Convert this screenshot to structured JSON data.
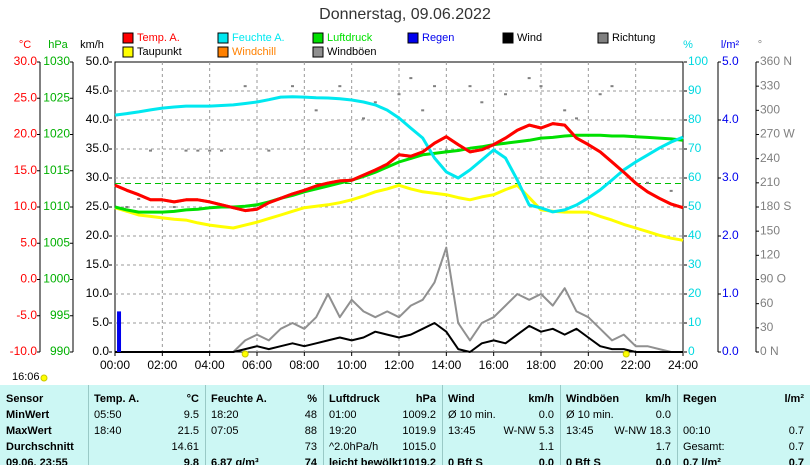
{
  "chart_data": {
    "type": "line",
    "title": "Donnerstag, 09.06.2022",
    "time_label": "16:06",
    "x": [
      0,
      0.5,
      1,
      1.5,
      2,
      2.5,
      3,
      3.5,
      4,
      4.5,
      5,
      5.5,
      6,
      6.5,
      7,
      7.5,
      8,
      8.5,
      9,
      9.5,
      10,
      10.5,
      11,
      11.5,
      12,
      12.5,
      13,
      13.5,
      14,
      14.5,
      15,
      15.5,
      16,
      16.5,
      17,
      17.5,
      18,
      18.5,
      19,
      19.5,
      20,
      20.5,
      21,
      21.5,
      22,
      22.5,
      23,
      23.5,
      24
    ],
    "xlim": [
      0,
      24
    ],
    "xticks": [
      {
        "value": 0,
        "label": "00:00"
      },
      {
        "value": 2,
        "label": "02:00"
      },
      {
        "value": 4,
        "label": "04:00"
      },
      {
        "value": 6,
        "label": "06:00"
      },
      {
        "value": 8,
        "label": "08:00"
      },
      {
        "value": 10,
        "label": "10:00"
      },
      {
        "value": 12,
        "label": "12:00"
      },
      {
        "value": 14,
        "label": "14:00"
      },
      {
        "value": 16,
        "label": "16:00"
      },
      {
        "value": 18,
        "label": "18:00"
      },
      {
        "value": 20,
        "label": "20:00"
      },
      {
        "value": 22,
        "label": "22:00"
      },
      {
        "value": 24,
        "label": "24:00"
      }
    ],
    "grid": true,
    "sun_markers": [
      5.5,
      21.6
    ],
    "pressure_reference": 1013.25,
    "axes": {
      "temp": {
        "unit": "°C",
        "color": "#ff0000",
        "side": "left",
        "ylim": [
          -10,
          30
        ],
        "yticks": [
          {
            "value": 30,
            "label": "30.0"
          },
          {
            "value": 25,
            "label": "25.0"
          },
          {
            "value": 20,
            "label": "20.0"
          },
          {
            "value": 15,
            "label": "15.0"
          },
          {
            "value": 10,
            "label": "10.0"
          },
          {
            "value": 5,
            "label": "5.0"
          },
          {
            "value": 0,
            "label": "0.0"
          },
          {
            "value": -5,
            "label": "-5.0"
          },
          {
            "value": -10,
            "label": "-10.0"
          }
        ]
      },
      "pressure": {
        "unit": "hPa",
        "color": "#00b000",
        "side": "left",
        "ylim": [
          990,
          1030
        ],
        "yticks": [
          1030,
          1025,
          1020,
          1015,
          1010,
          1005,
          1000,
          995,
          990
        ]
      },
      "wind": {
        "unit": "km/h",
        "color": "#000000",
        "side": "left",
        "ylim": [
          0,
          50
        ],
        "yticks": [
          {
            "value": 50,
            "label": "50.0"
          },
          {
            "value": 45,
            "label": "45.0"
          },
          {
            "value": 40,
            "label": "40.0"
          },
          {
            "value": 35,
            "label": "35.0"
          },
          {
            "value": 30,
            "label": "30.0"
          },
          {
            "value": 25,
            "label": "25.0"
          },
          {
            "value": 20,
            "label": "20.0"
          },
          {
            "value": 15,
            "label": "15.0"
          },
          {
            "value": 10,
            "label": "10.0"
          },
          {
            "value": 5,
            "label": "5.0"
          },
          {
            "value": 0,
            "label": "0.0"
          }
        ]
      },
      "humidity": {
        "unit": "%",
        "color": "#00d8e0",
        "side": "right",
        "ylim": [
          0,
          100
        ],
        "yticks": [
          100,
          90,
          80,
          70,
          60,
          50,
          40,
          30,
          20,
          10,
          0
        ]
      },
      "rain": {
        "unit": "l/m²",
        "color": "#0000ee",
        "side": "right",
        "ylim": [
          0,
          5
        ],
        "yticks": [
          {
            "value": 5,
            "label": "5.0"
          },
          {
            "value": 4,
            "label": "4.0"
          },
          {
            "value": 3,
            "label": "3.0"
          },
          {
            "value": 2,
            "label": "2.0"
          },
          {
            "value": 1,
            "label": "1.0"
          },
          {
            "value": 0,
            "label": "0.0"
          }
        ]
      },
      "direction": {
        "unit": "°",
        "color": "#808080",
        "side": "right",
        "ylim": [
          0,
          360
        ],
        "yticks": [
          {
            "value": 360,
            "label": "360 N"
          },
          {
            "value": 330,
            "label": "330"
          },
          {
            "value": 300,
            "label": "300"
          },
          {
            "value": 270,
            "label": "270 W"
          },
          {
            "value": 240,
            "label": "240"
          },
          {
            "value": 210,
            "label": "210"
          },
          {
            "value": 180,
            "label": "180 S"
          },
          {
            "value": 150,
            "label": "150"
          },
          {
            "value": 120,
            "label": "120"
          },
          {
            "value": 90,
            "label": "90 O"
          },
          {
            "value": 60,
            "label": "60"
          },
          {
            "value": 30,
            "label": "30"
          },
          {
            "value": 0,
            "label": "0 N"
          }
        ]
      }
    },
    "series": [
      {
        "name": "Temp. A.",
        "color": "#ff0000",
        "axis": "temp",
        "width": 3,
        "values": [
          13.0,
          12.3,
          11.7,
          11.0,
          11.0,
          10.7,
          11.0,
          11.0,
          10.7,
          10.3,
          9.9,
          9.5,
          9.7,
          10.6,
          11.2,
          11.8,
          12.3,
          12.9,
          13.3,
          13.6,
          13.7,
          14.4,
          15.1,
          15.9,
          17.2,
          17.0,
          17.6,
          18.8,
          19.7,
          18.6,
          17.6,
          17.9,
          18.6,
          19.5,
          20.6,
          21.3,
          20.9,
          21.5,
          21.3,
          19.5,
          18.6,
          17.6,
          16.2,
          14.8,
          13.3,
          12.1,
          11.2,
          10.4,
          9.9
        ]
      },
      {
        "name": "Feuchte A.",
        "color": "#00e8f0",
        "axis": "humidity",
        "width": 3,
        "values": [
          81.7,
          82.2,
          82.8,
          83.5,
          84.1,
          84.5,
          84.8,
          84.8,
          84.8,
          85.0,
          85.2,
          85.7,
          86.2,
          87.0,
          87.9,
          88.0,
          87.9,
          87.7,
          87.6,
          87.3,
          86.9,
          86.2,
          85.2,
          83.4,
          80.7,
          77.2,
          73.8,
          66.9,
          62.1,
          60.0,
          62.8,
          66.2,
          69.7,
          66.9,
          59.3,
          50.7,
          49.7,
          48.3,
          49.0,
          50.7,
          53.1,
          55.9,
          59.3,
          62.8,
          65.5,
          67.9,
          70.3,
          72.4,
          74.1
        ]
      },
      {
        "name": "Luftdruck",
        "color": "#00e000",
        "axis": "pressure",
        "width": 3,
        "values": [
          1010.0,
          1009.6,
          1009.3,
          1009.3,
          1009.3,
          1009.4,
          1009.6,
          1009.7,
          1009.9,
          1010.0,
          1010.0,
          1010.1,
          1010.3,
          1010.7,
          1011.2,
          1011.6,
          1012.1,
          1012.5,
          1012.9,
          1013.3,
          1013.7,
          1014.2,
          1014.8,
          1015.5,
          1016.2,
          1016.7,
          1017.2,
          1017.4,
          1017.6,
          1017.8,
          1018.1,
          1018.3,
          1018.6,
          1018.8,
          1019.0,
          1019.2,
          1019.5,
          1019.6,
          1019.8,
          1019.9,
          1019.9,
          1019.9,
          1019.8,
          1019.8,
          1019.7,
          1019.6,
          1019.5,
          1019.4,
          1019.2
        ]
      },
      {
        "name": "Regen",
        "color": "#0000ee",
        "axis": "rain",
        "kind": "bar",
        "x": [
          0.17
        ],
        "values": [
          0.7
        ]
      },
      {
        "name": "Wind",
        "color": "#000000",
        "axis": "wind",
        "width": 2,
        "values": [
          0,
          0,
          0,
          0,
          0,
          0,
          0,
          0,
          0,
          0,
          0,
          0.5,
          1,
          0.5,
          1,
          1.5,
          1,
          1.5,
          2,
          2.5,
          2,
          2.5,
          3.5,
          3,
          2.5,
          3,
          4,
          5,
          3.5,
          0.5,
          0,
          1.5,
          2,
          1.5,
          3,
          4.5,
          3.5,
          4,
          3,
          4,
          2.5,
          1,
          0.5,
          0.5,
          0,
          0,
          0,
          0,
          0
        ]
      },
      {
        "name": "Richtung",
        "color": "#808080",
        "axis": "direction",
        "kind": "dots",
        "x": [
          0.5,
          1,
          1.5,
          2.5,
          3,
          3.5,
          4,
          4.5,
          5.5,
          6.5,
          7.5,
          8.5,
          9.5,
          10.5,
          11,
          12,
          12.5,
          13,
          13.5,
          14,
          15,
          15.5,
          16.5,
          17.5,
          18,
          19,
          19.5,
          20.5,
          21,
          22.5,
          23.5
        ],
        "values": [
          180,
          190,
          250,
          180,
          250,
          250,
          250,
          250,
          330,
          250,
          330,
          300,
          330,
          290,
          310,
          320,
          340,
          300,
          330,
          250,
          330,
          310,
          320,
          340,
          330,
          300,
          290,
          320,
          330,
          210,
          200
        ]
      },
      {
        "name": "Taupunkt",
        "color": "#ffff00",
        "axis": "temp",
        "width": 3,
        "values": [
          9.9,
          9.4,
          8.9,
          8.7,
          8.5,
          8.3,
          8.2,
          7.8,
          7.5,
          7.3,
          7.1,
          7.5,
          7.9,
          8.4,
          8.9,
          9.4,
          9.9,
          10.1,
          10.3,
          10.6,
          11.0,
          11.5,
          12.1,
          12.5,
          13.0,
          12.5,
          12.1,
          11.9,
          11.7,
          11.3,
          11.0,
          11.4,
          11.7,
          12.4,
          13.0,
          11.3,
          9.6,
          9.4,
          9.3,
          9.3,
          9.3,
          8.7,
          8.2,
          7.6,
          7.1,
          6.6,
          6.1,
          5.7,
          5.4
        ]
      },
      {
        "name": "Windchill",
        "color": "#ff8000",
        "axis": "temp",
        "width": 3,
        "values": [
          13.0,
          12.3,
          11.7,
          11.0,
          11.0,
          10.7,
          11.0,
          11.0,
          10.7,
          10.3,
          9.9,
          9.5,
          9.7,
          10.6,
          11.2,
          11.8,
          12.3,
          12.9,
          13.3,
          13.6,
          13.7,
          14.4,
          15.1,
          15.9,
          17.2,
          17.0,
          17.6,
          18.8,
          19.7,
          18.6,
          17.6,
          17.9,
          18.6,
          19.5,
          20.6,
          21.3,
          20.9,
          21.5,
          21.3,
          19.5,
          18.6,
          17.6,
          16.2,
          14.8,
          13.3,
          12.1,
          11.2,
          10.4,
          9.9
        ]
      },
      {
        "name": "Windböen",
        "color": "#909090",
        "axis": "wind",
        "width": 2,
        "values": [
          0,
          0,
          0,
          0,
          0,
          0,
          0,
          0,
          0,
          0,
          0,
          2,
          3,
          2,
          4,
          5,
          4,
          6,
          10,
          6,
          9,
          7,
          6,
          7,
          6,
          8,
          9,
          12,
          18,
          5,
          2,
          5,
          6,
          8,
          10,
          9,
          10,
          8,
          11,
          7,
          6,
          4,
          2,
          3,
          1,
          1,
          0.5,
          0,
          0
        ]
      }
    ]
  },
  "table": {
    "header": [
      [
        "Sensor"
      ],
      [
        "Temp. A.",
        "°C"
      ],
      [
        "Feuchte A.",
        "%"
      ],
      [
        "Luftdruck",
        "hPa"
      ],
      [
        "Wind",
        "km/h"
      ],
      [
        "Windböen",
        "km/h"
      ],
      [
        "Regen",
        "l/m²"
      ]
    ],
    "rows": [
      [
        [
          "MinWert"
        ],
        [
          "05:50",
          "9.5"
        ],
        [
          "18:20",
          "48"
        ],
        [
          "01:00",
          "1009.2"
        ],
        [
          "Ø 10 min.",
          "0.0"
        ],
        [
          "Ø 10 min.",
          "0.0"
        ],
        []
      ],
      [
        [
          "MaxWert"
        ],
        [
          "18:40",
          "21.5"
        ],
        [
          "07:05",
          "88"
        ],
        [
          "19:20",
          "1019.9"
        ],
        [
          "13:45",
          "W-NW 5.3"
        ],
        [
          "13:45",
          "W-NW 18.3"
        ],
        [
          "00:10",
          "0.7"
        ]
      ],
      [
        [
          "Durchschnitt"
        ],
        [
          "",
          "14.61"
        ],
        [
          "",
          "73"
        ],
        [
          "^2.0hPa/h",
          "1015.0"
        ],
        [
          "",
          "1.1"
        ],
        [
          "",
          "1.7"
        ],
        [
          "Gesamt:",
          "0.7"
        ]
      ],
      [
        [
          "09.06. 23:55"
        ],
        [
          "",
          "9.8"
        ],
        [
          "6.87 g/m³",
          "74"
        ],
        [
          "leicht bewölkt",
          "1019.2"
        ],
        [
          "0 Bft S",
          "0.0"
        ],
        [
          "0 Bft S",
          "0.0"
        ],
        [
          "0.7 l/m²",
          "0.7"
        ]
      ]
    ]
  }
}
